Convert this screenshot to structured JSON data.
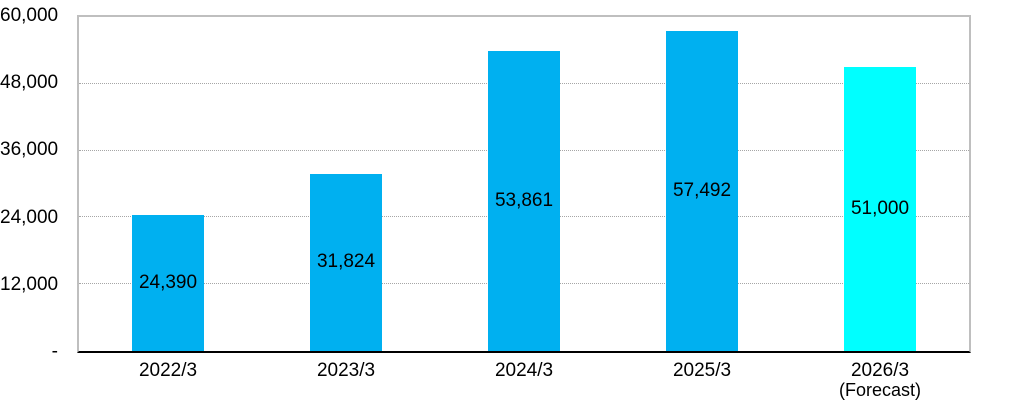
{
  "chart_data": {
    "type": "bar",
    "title": "",
    "xlabel": "",
    "ylabel": "",
    "categories": [
      "2022/3",
      "2023/3",
      "2024/3",
      "2025/3",
      "2026/3"
    ],
    "category_sublabels": [
      "",
      "",
      "",
      "",
      "(Forecast)"
    ],
    "values": [
      24390,
      31824,
      53861,
      57492,
      51000
    ],
    "value_labels": [
      "24,390",
      "31,824",
      "53,861",
      "57,492",
      "51,000"
    ],
    "bar_colors": [
      "#00B0F0",
      "#00B0F0",
      "#00B0F0",
      "#00B0F0",
      "#00FFFF"
    ],
    "ylim": [
      0,
      60000
    ],
    "ytick_interval": 12000,
    "ytick_labels_bottom_to_top": [
      "-",
      "12,000",
      "24,000",
      "36,000",
      "48,000",
      "60,000"
    ],
    "grid": true,
    "gridline_style": "dotted",
    "legend": false,
    "data_label_position": "inside-center"
  },
  "colors": {
    "bar_default": "#00B0F0",
    "bar_forecast": "#00FFFF",
    "gridline": "#A6A6A6",
    "plot_border": "#BFBFBF",
    "axis_line": "#000000",
    "text": "#000000",
    "background": "#FFFFFF"
  }
}
